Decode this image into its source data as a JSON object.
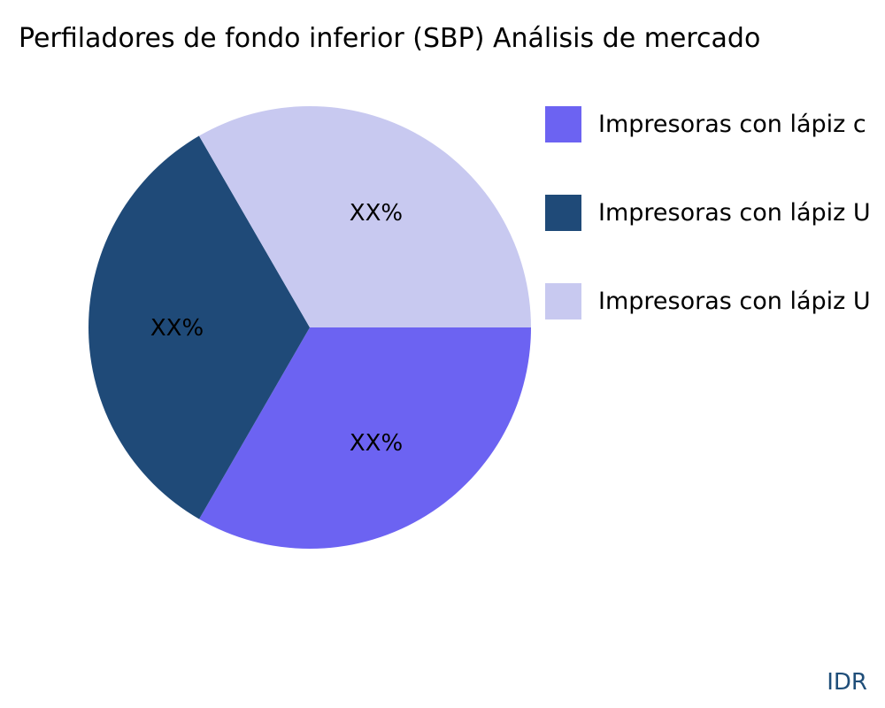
{
  "chart_data": {
    "type": "pie",
    "title": "Perfiladores de fondo inferior (SBP) Análisis de mercado",
    "slices": [
      {
        "name": "Impresoras con lápiz c",
        "value": 33.33,
        "label": "XX%",
        "color": "#6c63f2"
      },
      {
        "name": "Impresoras con lápiz U",
        "value": 33.33,
        "label": "XX%",
        "color": "#1f4a78"
      },
      {
        "name": "Impresoras con lápiz U",
        "value": 33.34,
        "label": "XX%",
        "color": "#c8c9f0"
      }
    ],
    "legend_placement": "right"
  },
  "brand": "IDR"
}
